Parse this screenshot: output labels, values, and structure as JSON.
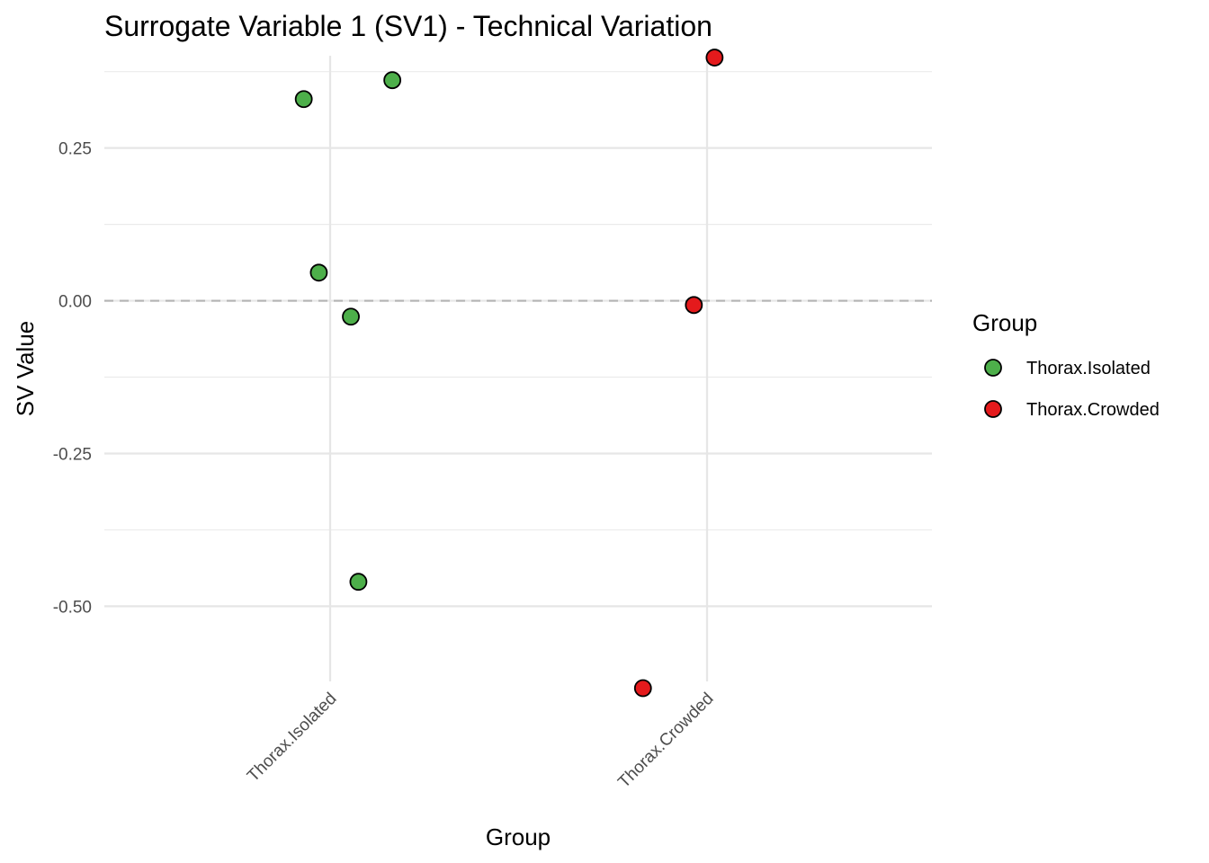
{
  "chart_data": {
    "type": "scatter",
    "title": "Surrogate Variable 1 (SV1) - Technical Variation",
    "xlabel": "Group",
    "ylabel": "SV Value",
    "categories": [
      "Thorax.Isolated",
      "Thorax.Crowded"
    ],
    "ylim": [
      -0.623,
      0.401
    ],
    "yticks": [
      -0.5,
      -0.25,
      0.0,
      0.25
    ],
    "ytick_labels": [
      "-0.50",
      "-0.25",
      "0.00",
      "0.25"
    ],
    "reference_line": {
      "y": 0,
      "style": "dashed",
      "color": "#b3b3b3"
    },
    "grid": true,
    "legend": {
      "title": "Group",
      "position": "right",
      "entries": [
        {
          "label": "Thorax.Isolated",
          "color": "#4daf4a"
        },
        {
          "label": "Thorax.Crowded",
          "color": "#e41a1c"
        }
      ]
    },
    "series": [
      {
        "name": "Thorax.Isolated",
        "color": "#4daf4a",
        "points": [
          {
            "category": "Thorax.Isolated",
            "jitter": -0.07,
            "y": 0.33
          },
          {
            "category": "Thorax.Isolated",
            "jitter": 0.165,
            "y": 0.361
          },
          {
            "category": "Thorax.Isolated",
            "jitter": -0.03,
            "y": 0.046
          },
          {
            "category": "Thorax.Isolated",
            "jitter": 0.055,
            "y": -0.026
          },
          {
            "category": "Thorax.Isolated",
            "jitter": 0.075,
            "y": -0.46
          }
        ]
      },
      {
        "name": "Thorax.Crowded",
        "color": "#e41a1c",
        "points": [
          {
            "category": "Thorax.Crowded",
            "jitter": 0.02,
            "y": 0.398
          },
          {
            "category": "Thorax.Crowded",
            "jitter": -0.035,
            "y": -0.007
          },
          {
            "category": "Thorax.Crowded",
            "jitter": -0.17,
            "y": -0.634
          }
        ]
      }
    ]
  }
}
